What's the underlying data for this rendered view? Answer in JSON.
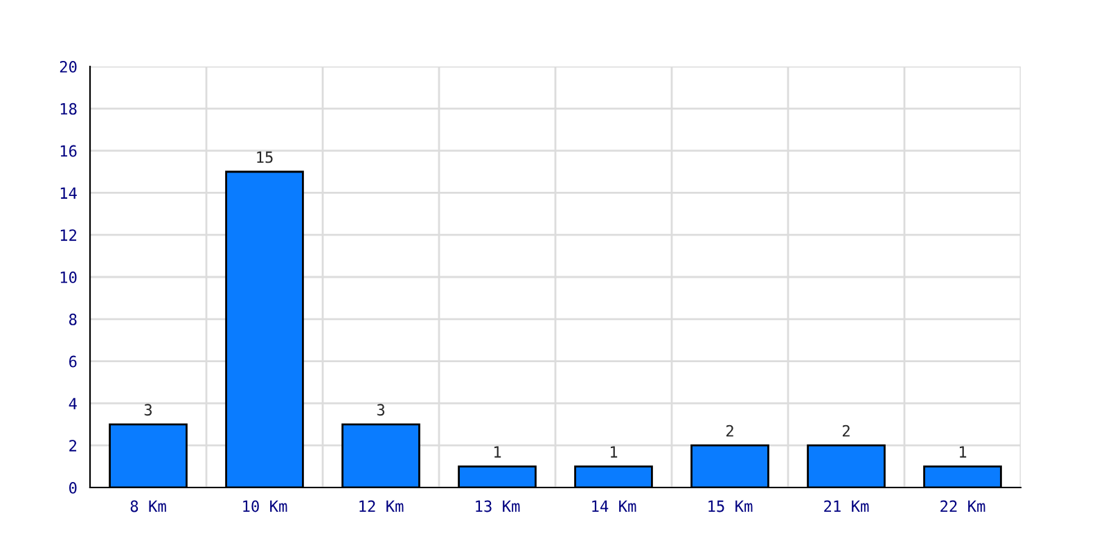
{
  "chart_data": {
    "type": "bar",
    "categories": [
      "8 Km",
      "10 Km",
      "12 Km",
      "13 Km",
      "14 Km",
      "15 Km",
      "21 Km",
      "22 Km"
    ],
    "values": [
      3,
      15,
      3,
      1,
      1,
      2,
      2,
      1
    ],
    "color": "#0a7cff",
    "ylim": [
      0,
      20
    ],
    "yticks": [
      0,
      2,
      4,
      6,
      8,
      10,
      12,
      14,
      16,
      18,
      20
    ],
    "grid": true,
    "data_labels": true
  }
}
